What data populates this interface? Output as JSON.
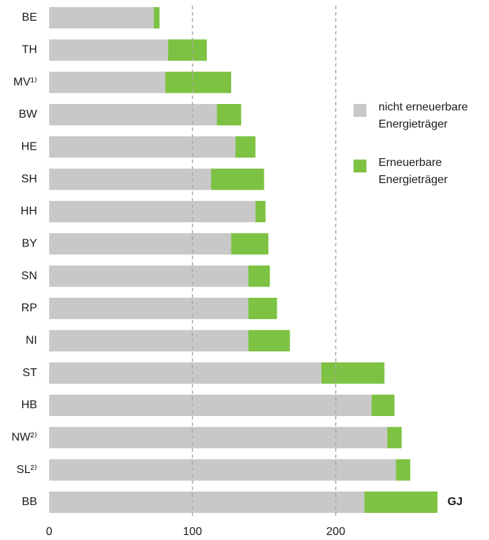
{
  "chart_data": {
    "type": "stacked-bar-horizontal",
    "categories": [
      "BE",
      "TH",
      "MV¹⁾",
      "BW",
      "HE",
      "SH",
      "HH",
      "BY",
      "SN",
      "RP",
      "NI",
      "ST",
      "HB",
      "NW²⁾",
      "SL²⁾",
      "BB"
    ],
    "series": [
      {
        "name": "nicht erneuerbare Energieträger",
        "color": "#c8c8c9",
        "values": [
          73,
          83,
          81,
          117,
          130,
          113,
          144,
          127,
          139,
          139,
          139,
          190,
          225,
          236,
          242,
          220
        ]
      },
      {
        "name": "Erneuerbare Energieträger",
        "color": "#7dc242",
        "values": [
          4,
          27,
          46,
          17,
          14,
          37,
          7,
          26,
          15,
          20,
          29,
          44,
          16,
          10,
          10,
          51
        ]
      }
    ],
    "unit_label": "GJ",
    "xlim": [
      0,
      300
    ],
    "xticks": [
      0,
      100,
      200
    ],
    "grid": true,
    "legend": "right"
  }
}
